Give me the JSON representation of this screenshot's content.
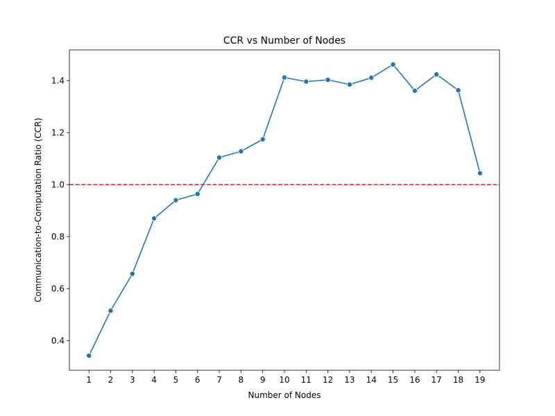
{
  "chart_data": {
    "type": "line",
    "title": "CCR vs Number of Nodes",
    "xlabel": "Number of Nodes",
    "ylabel": "Communication-to-Computation Ratio (CCR)",
    "x": [
      1,
      2,
      3,
      4,
      5,
      6,
      7,
      8,
      9,
      10,
      11,
      12,
      13,
      14,
      15,
      16,
      17,
      18,
      19
    ],
    "series": [
      {
        "color": "#1f77b4",
        "marker": "circle",
        "values": [
          0.342,
          0.515,
          0.657,
          0.87,
          0.94,
          0.964,
          1.104,
          1.128,
          1.174,
          1.412,
          1.396,
          1.403,
          1.385,
          1.411,
          1.462,
          1.361,
          1.424,
          1.363,
          1.044
        ]
      }
    ],
    "reference_line": {
      "y": 1.0,
      "color": "#d62728",
      "style": "dashed"
    },
    "xlim": [
      0.1,
      19.9
    ],
    "ylim": [
      0.286,
      1.518
    ],
    "xticks": [
      "1",
      "2",
      "3",
      "4",
      "5",
      "6",
      "7",
      "8",
      "9",
      "10",
      "11",
      "12",
      "13",
      "14",
      "15",
      "16",
      "17",
      "18",
      "19"
    ],
    "yticks": [
      {
        "value": 0.4,
        "label": "0.4"
      },
      {
        "value": 0.6,
        "label": "0.6"
      },
      {
        "value": 0.8,
        "label": "0.8"
      },
      {
        "value": 1.0,
        "label": "1.0"
      },
      {
        "value": 1.2,
        "label": "1.2"
      },
      {
        "value": 1.4,
        "label": "1.4"
      }
    ],
    "grid": false,
    "legend": "none"
  }
}
